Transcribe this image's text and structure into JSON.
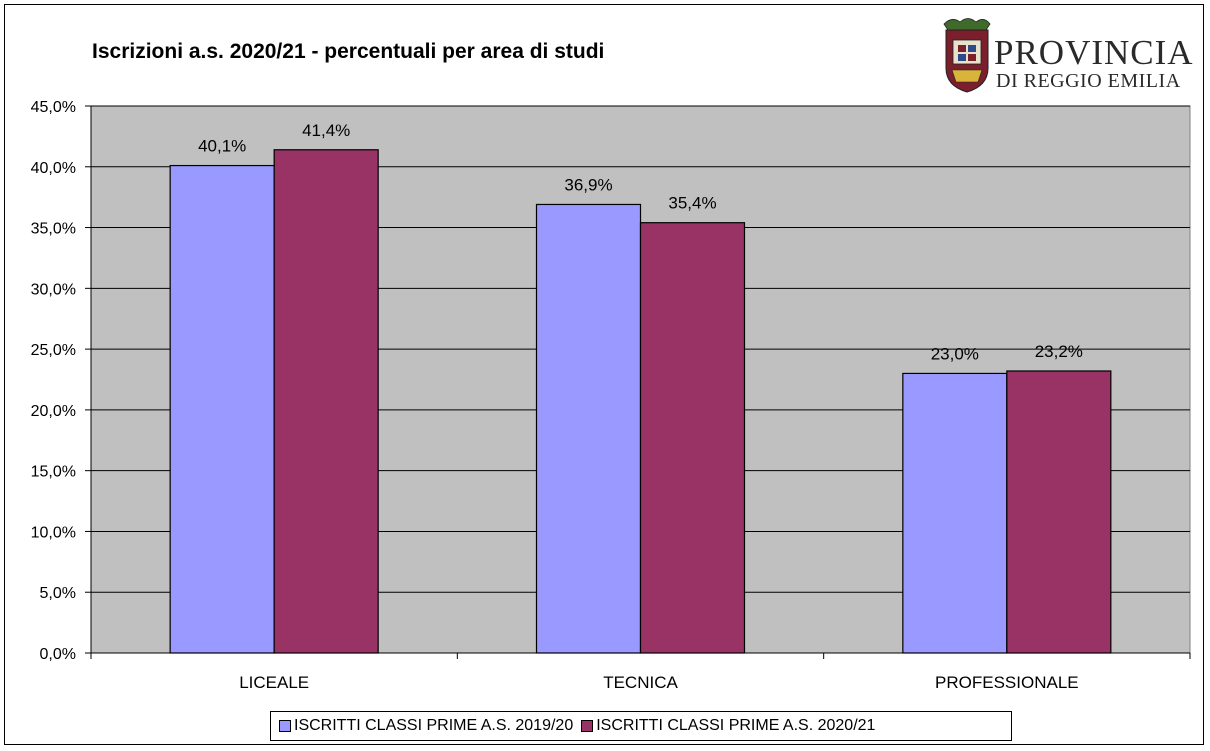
{
  "chart_data": {
    "type": "bar",
    "title": "Iscrizioni a.s. 2020/21 - percentuali per area di studi",
    "categories": [
      "LICEALE",
      "TECNICA",
      "PROFESSIONALE"
    ],
    "series": [
      {
        "name": "ISCRITTI CLASSI PRIME A.S. 2019/20",
        "values": [
          40.1,
          36.9,
          23.0
        ],
        "labels": [
          "40,1%",
          "36,9%",
          "23,0%"
        ],
        "color": "#9999ff"
      },
      {
        "name": "ISCRITTI CLASSI PRIME A.S. 2020/21",
        "values": [
          41.4,
          35.4,
          23.2
        ],
        "labels": [
          "41,4%",
          "35,4%",
          "23,2%"
        ],
        "color": "#993366"
      }
    ],
    "yticks": [
      "0,0%",
      "5,0%",
      "10,0%",
      "15,0%",
      "20,0%",
      "25,0%",
      "30,0%",
      "35,0%",
      "40,0%",
      "45,0%"
    ],
    "ylim": [
      0,
      45
    ],
    "xlabel": "",
    "ylabel": "",
    "grid": true,
    "plot_background": "#c0c0c0",
    "legend_position": "bottom"
  },
  "logo": {
    "line1": "PROVINCIA",
    "line2": "DI REGGIO EMILIA"
  }
}
